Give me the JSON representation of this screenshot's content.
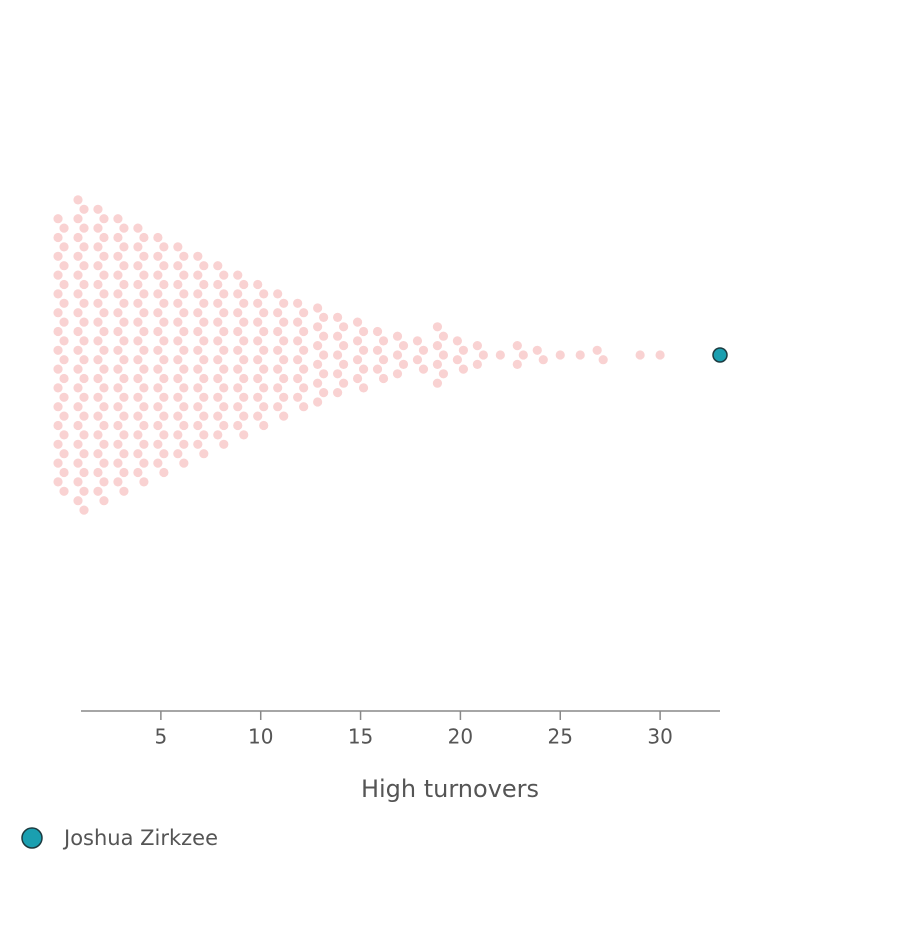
{
  "chart_data": {
    "type": "beeswarm",
    "x_label": "High turnovers",
    "x": [
      0,
      1,
      2,
      3,
      4,
      5,
      6,
      7,
      8,
      9,
      10,
      11,
      12,
      13,
      14,
      15,
      16,
      17,
      18,
      19,
      20,
      21,
      22,
      23,
      24,
      25,
      26,
      27,
      29,
      30
    ],
    "counts": [
      30,
      34,
      32,
      30,
      28,
      26,
      24,
      22,
      20,
      18,
      16,
      14,
      12,
      11,
      9,
      8,
      6,
      5,
      4,
      7,
      4,
      3,
      1,
      3,
      2,
      1,
      1,
      2,
      1,
      1
    ],
    "color": "#f9d2d2",
    "highlight": {
      "name": "Joshua Zirkzee",
      "value": 33,
      "color": "#1a9fb0"
    },
    "xlim": [
      1,
      33
    ],
    "xticks": [
      5,
      10,
      15,
      20,
      25,
      30
    ]
  }
}
